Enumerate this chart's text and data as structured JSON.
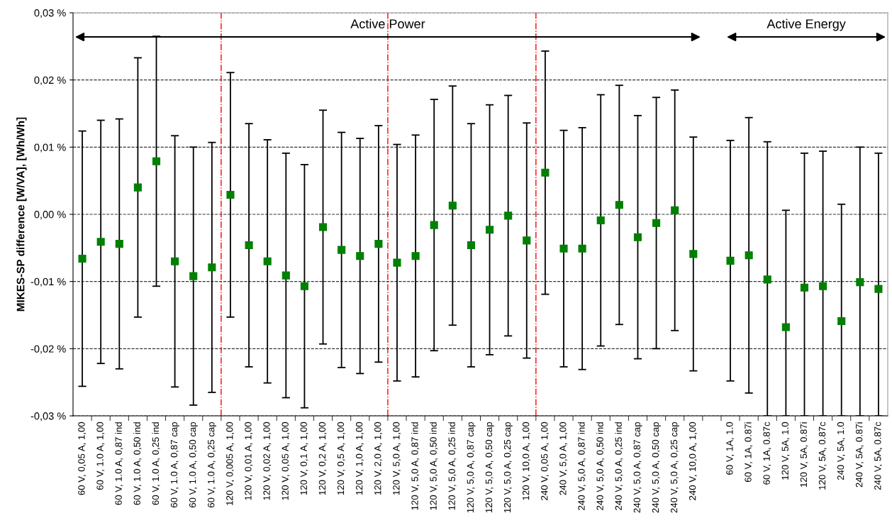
{
  "chart_data": {
    "type": "scatter",
    "ylabel": "MIKES-SP difference [W/VA], [Wh/Wh]",
    "annotations": [
      "Active Power",
      "Active Energy"
    ],
    "categories": [
      "60 V, 0,05 A, 1,00",
      "60 V, 1.0 A, 1,00",
      "60 V, 1.0 A, 0,87 ind",
      "60 V, 1.0 A, 0,50 ind",
      "60 V, 1.0 A, 0,25 ind",
      "60 V, 1.0 A, 0,87 cap",
      "60 V, 1.0 A, 0,50 cap",
      "60 V, 1.0 A, 0,25 cap",
      "120 V, 0,005 A, 1,00",
      "120 V, 0,01 A, 1,00",
      "120 V, 0,02 A, 1,00",
      "120 V, 0,05 A, 1,00",
      "120 V, 0,1 A, 1,00",
      "120 V, 0,2 A, 1,00",
      "120 V, 0,5 A, 1,00",
      "120 V, 1,0 A, 1,00",
      "120 V, 2,0 A, 1,00",
      "120 V, 5,0 A, 1,00",
      "120 V, 5,0 A, 0,87 ind",
      "120 V, 5,0 A, 0,50 ind",
      "120 V, 5,0 A, 0,25 ind",
      "120 V, 5,0 A, 0,87 cap",
      "120 V, 5,0 A, 0,50 cap",
      "120 V, 5,0 A, 0,25 cap",
      "120 V, 10,0 A, 1,00",
      "240 V, 0,05 A, 1,00",
      "240 V, 5,0 A, 1,00",
      "240 V, 5,0 A, 0,87 ind",
      "240 V, 5,0 A, 0,50 ind",
      "240 V, 5,0 A, 0,25 ind",
      "240 V, 5,0 A, 0,87 cap",
      "240 V, 5,0 A, 0,50 cap",
      "240 V, 5,0 A, 0,25 cap",
      "240 V, 10,0 A, 1,00",
      null,
      "60 V, 1A, 1.0",
      "60 V, 1A, 0.87i",
      "60 V, 1A, 0.87c",
      "120 V, 5A, 1.0",
      "120 V, 5A, 0.87i",
      "120 V, 5A, 0.87c",
      "240 V, 5A, 1.0",
      "240 V, 5A, 0.87i",
      "240 V, 5A, 0.87c"
    ],
    "series": [
      {
        "color": "#008000",
        "values": [
          -0.0066,
          -0.0041,
          -0.0044,
          0.004,
          0.0079,
          -0.007,
          -0.0092,
          -0.0079,
          0.0029,
          -0.0046,
          -0.007,
          -0.0091,
          -0.0107,
          -0.0019,
          -0.0053,
          -0.0062,
          -0.0044,
          -0.0072,
          -0.0062,
          -0.0016,
          0.0013,
          -0.0046,
          -0.0023,
          -0.0002,
          -0.0039,
          0.0062,
          -0.0051,
          -0.0051,
          -0.0009,
          0.0014,
          -0.0034,
          -0.0013,
          0.0006,
          -0.0059,
          null,
          -0.0069,
          -0.0061,
          -0.0097,
          -0.0168,
          -0.0109,
          -0.0107,
          -0.0159,
          -0.0101,
          -0.0111
        ],
        "errors": [
          0.019,
          0.0181,
          0.0186,
          0.0193,
          0.0186,
          0.0187,
          0.0192,
          0.0186,
          0.0182,
          0.0181,
          0.0181,
          0.0182,
          0.0181,
          0.0174,
          0.0175,
          0.0175,
          0.0176,
          0.0176,
          0.018,
          0.0187,
          0.0178,
          0.0181,
          0.0186,
          0.0179,
          0.0175,
          0.0181,
          0.0176,
          0.018,
          0.0187,
          0.0178,
          0.0181,
          0.0187,
          0.0179,
          0.0174,
          null,
          0.0179,
          0.0205,
          [
            -0.03,
            0.0108
          ],
          [
            -0.03,
            0.0006
          ],
          [
            -0.03,
            0.0091
          ],
          [
            -0.03,
            0.0094
          ],
          [
            -0.03,
            0.0015
          ],
          [
            -0.03,
            0.01
          ],
          [
            -0.03,
            0.0091
          ]
        ]
      }
    ],
    "ylim": [
      -0.03,
      0.03
    ],
    "yticks": [
      {
        "value": -0.03,
        "label": "-0,03 %"
      },
      {
        "value": -0.02,
        "label": "-0,02 %"
      },
      {
        "value": -0.01,
        "label": "-0,01 %"
      },
      {
        "value": 0,
        "label": "0,00 %"
      },
      {
        "value": 0.01,
        "label": "0,01 %"
      },
      {
        "value": 0.02,
        "label": "0,02 %"
      },
      {
        "value": 0.03,
        "label": "0,03 %"
      }
    ],
    "grid": "y",
    "marker": "square",
    "legend": false
  }
}
